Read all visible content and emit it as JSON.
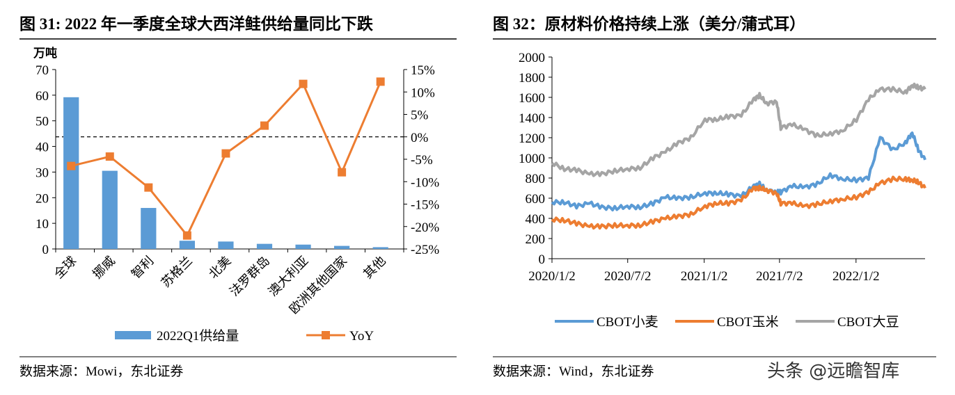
{
  "watermark": "头条 @远瞻智库",
  "chart_data": [
    {
      "type": "bar+line",
      "title": "图 31: 2022 年一季度全球大西洋鲑供给量同比下跌",
      "ylabel": "万吨",
      "ylim": [
        0,
        70
      ],
      "y_ticks": [
        "0",
        "10",
        "20",
        "30",
        "40",
        "50",
        "60",
        "70"
      ],
      "y2lim": [
        -25,
        15
      ],
      "y2_ticks": [
        "-25%",
        "-20%",
        "-15%",
        "-10%",
        "-5%",
        "0%",
        "5%",
        "10%",
        "15%"
      ],
      "categories": [
        "全球",
        "挪威",
        "智利",
        "苏格兰",
        "北美",
        "法罗群岛",
        "澳大利亚",
        "欧洲其他国家",
        "其他"
      ],
      "series": [
        {
          "name": "2022Q1供给量",
          "type": "bar",
          "axis": "left",
          "color": "#5b9bd5",
          "values": [
            59.2,
            30.5,
            16.0,
            3.2,
            2.9,
            2.0,
            1.7,
            1.2,
            0.7
          ]
        },
        {
          "name": "YoY",
          "type": "line",
          "axis": "right",
          "color": "#ed7d31",
          "values": [
            -6.5,
            -4.4,
            -11.3,
            -22.0,
            -3.7,
            2.5,
            11.8,
            -7.9,
            12.3
          ]
        }
      ],
      "reference_line": {
        "axis": "right",
        "value": 0,
        "style": "dashed"
      },
      "legend": "bottom",
      "source": "数据来源：Mowi，东北证券"
    },
    {
      "type": "line",
      "title": "图 32：原材料价格持续上涨（美分/蒲式耳）",
      "ylim": [
        0,
        2000
      ],
      "y_ticks": [
        "0",
        "200",
        "400",
        "600",
        "800",
        "1000",
        "1200",
        "1400",
        "1600",
        "1800",
        "2000"
      ],
      "x_ticks": [
        "2020/1/2",
        "2020/7/2",
        "2021/1/2",
        "2021/7/2",
        "2022/1/2"
      ],
      "x_tick_dates": [
        "2020-01-02",
        "2020-07-02",
        "2021-01-02",
        "2021-07-02",
        "2022-01-02"
      ],
      "xlim": [
        "2020-01-02",
        "2022-06-17"
      ],
      "dates": [
        "2020-01-02",
        "2020-02-01",
        "2020-03-01",
        "2020-04-01",
        "2020-05-01",
        "2020-06-01",
        "2020-07-01",
        "2020-08-01",
        "2020-09-01",
        "2020-10-01",
        "2020-11-01",
        "2020-12-01",
        "2021-01-04",
        "2021-02-01",
        "2021-03-01",
        "2021-04-01",
        "2021-05-01",
        "2021-05-15",
        "2021-06-01",
        "2021-06-25",
        "2021-07-05",
        "2021-08-01",
        "2021-09-01",
        "2021-10-01",
        "2021-11-01",
        "2021-12-01",
        "2022-01-03",
        "2022-02-01",
        "2022-03-01",
        "2022-04-01",
        "2022-05-01",
        "2022-05-17",
        "2022-06-01",
        "2022-06-17"
      ],
      "series": [
        {
          "name": "CBOT小麦",
          "color": "#5b9bd5",
          "values": [
            560,
            560,
            520,
            550,
            510,
            500,
            520,
            510,
            550,
            610,
            600,
            610,
            650,
            650,
            640,
            620,
            720,
            740,
            680,
            660,
            660,
            720,
            710,
            740,
            830,
            790,
            780,
            800,
            1200,
            1080,
            1150,
            1250,
            1080,
            980
          ]
        },
        {
          "name": "CBOT玉米",
          "color": "#ed7d31",
          "values": [
            390,
            380,
            350,
            320,
            320,
            330,
            330,
            330,
            370,
            400,
            420,
            440,
            520,
            550,
            550,
            580,
            700,
            700,
            680,
            650,
            550,
            550,
            520,
            540,
            570,
            590,
            610,
            660,
            750,
            790,
            790,
            780,
            760,
            700
          ]
        },
        {
          "name": "CBOT大豆",
          "color": "#a5a5a5",
          "values": [
            950,
            890,
            880,
            840,
            840,
            870,
            890,
            900,
            1000,
            1060,
            1150,
            1200,
            1380,
            1380,
            1410,
            1420,
            1580,
            1620,
            1540,
            1560,
            1300,
            1330,
            1280,
            1220,
            1240,
            1270,
            1380,
            1580,
            1680,
            1680,
            1650,
            1720,
            1700,
            1680
          ]
        }
      ],
      "legend": "bottom",
      "source": "数据来源：Wind，东北证券"
    }
  ]
}
